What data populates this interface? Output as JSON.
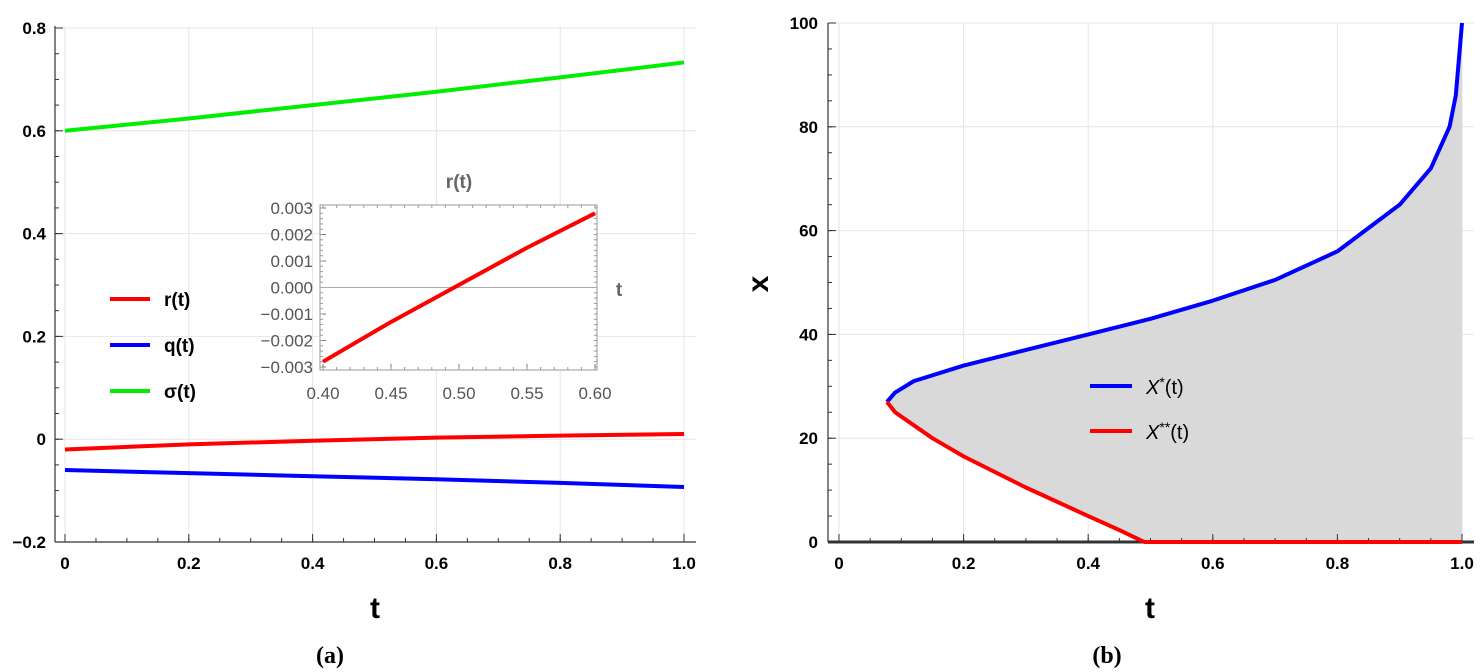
{
  "chart_data": [
    {
      "type": "line",
      "panel_label": "(a)",
      "xlabel": "t",
      "ylabel": "",
      "xlim": [
        0,
        1.0
      ],
      "ylim": [
        -0.2,
        0.8
      ],
      "xticks": [
        "0",
        "0.2",
        "0.4",
        "0.6",
        "0.8",
        "1.0"
      ],
      "yticks": [
        "-0.2",
        "0",
        "0.2",
        "0.4",
        "0.6",
        "0.8"
      ],
      "legend_position": "left-center",
      "grid": true,
      "series": [
        {
          "name": "r(t)",
          "color": "#ff0000",
          "x": [
            0,
            0.2,
            0.4,
            0.6,
            0.8,
            1.0
          ],
          "y": [
            -0.02,
            -0.01,
            -0.003,
            0.003,
            0.007,
            0.01
          ]
        },
        {
          "name": "q(t)",
          "color": "#0000ff",
          "x": [
            0,
            0.2,
            0.4,
            0.6,
            0.8,
            1.0
          ],
          "y": [
            -0.06,
            -0.066,
            -0.072,
            -0.078,
            -0.085,
            -0.093
          ]
        },
        {
          "name": "σ(t)",
          "color": "#00ee00",
          "x": [
            0,
            0.2,
            0.4,
            0.6,
            0.8,
            1.0
          ],
          "y": [
            0.6,
            0.624,
            0.65,
            0.676,
            0.704,
            0.733
          ]
        }
      ],
      "inset": {
        "title": "r(t)",
        "xlabel": "t",
        "xlim": [
          0.4,
          0.6
        ],
        "ylim": [
          -0.003,
          0.003
        ],
        "xticks": [
          "0.40",
          "0.45",
          "0.50",
          "0.55",
          "0.60"
        ],
        "yticks": [
          "0.003",
          "0.002",
          "0.001",
          "0.000",
          "-0.001",
          "-0.002",
          "-0.003"
        ],
        "series": [
          {
            "color": "#ff0000",
            "x": [
              0.4,
              0.45,
              0.5,
              0.55,
              0.6
            ],
            "y": [
              -0.0028,
              -0.0013,
              0.0001,
              0.0015,
              0.0028
            ]
          }
        ]
      }
    },
    {
      "type": "area",
      "panel_label": "(b)",
      "xlabel": "t",
      "ylabel": "x",
      "xlim": [
        0,
        1.0
      ],
      "ylim": [
        0,
        100
      ],
      "xticks": [
        "0",
        "0.2",
        "0.4",
        "0.6",
        "0.8",
        "1.0"
      ],
      "yticks": [
        "0",
        "20",
        "40",
        "60",
        "80",
        "100"
      ],
      "legend_position": "center",
      "grid": true,
      "fill_color": "#d9d9d9",
      "series": [
        {
          "name": "X*(t)",
          "legend_main": "X",
          "legend_sup": "*",
          "legend_tail": "(t)",
          "color": "#0000ff",
          "x": [
            0.077,
            0.09,
            0.12,
            0.2,
            0.3,
            0.4,
            0.5,
            0.6,
            0.7,
            0.8,
            0.9,
            0.95,
            0.98,
            0.99,
            1.0
          ],
          "y": [
            27,
            28.8,
            31,
            34,
            37,
            40,
            43,
            46.5,
            50.5,
            56,
            65,
            72,
            80,
            86,
            100
          ]
        },
        {
          "name": "X**(t)",
          "legend_main": "X",
          "legend_sup": "**",
          "legend_tail": "(t)",
          "color": "#ff0000",
          "x": [
            0.077,
            0.09,
            0.15,
            0.2,
            0.3,
            0.4,
            0.45,
            0.49,
            0.6,
            0.8,
            1.0
          ],
          "y": [
            27,
            25,
            20,
            16.5,
            10.5,
            5,
            2.3,
            0,
            0,
            0,
            0
          ]
        }
      ]
    }
  ]
}
